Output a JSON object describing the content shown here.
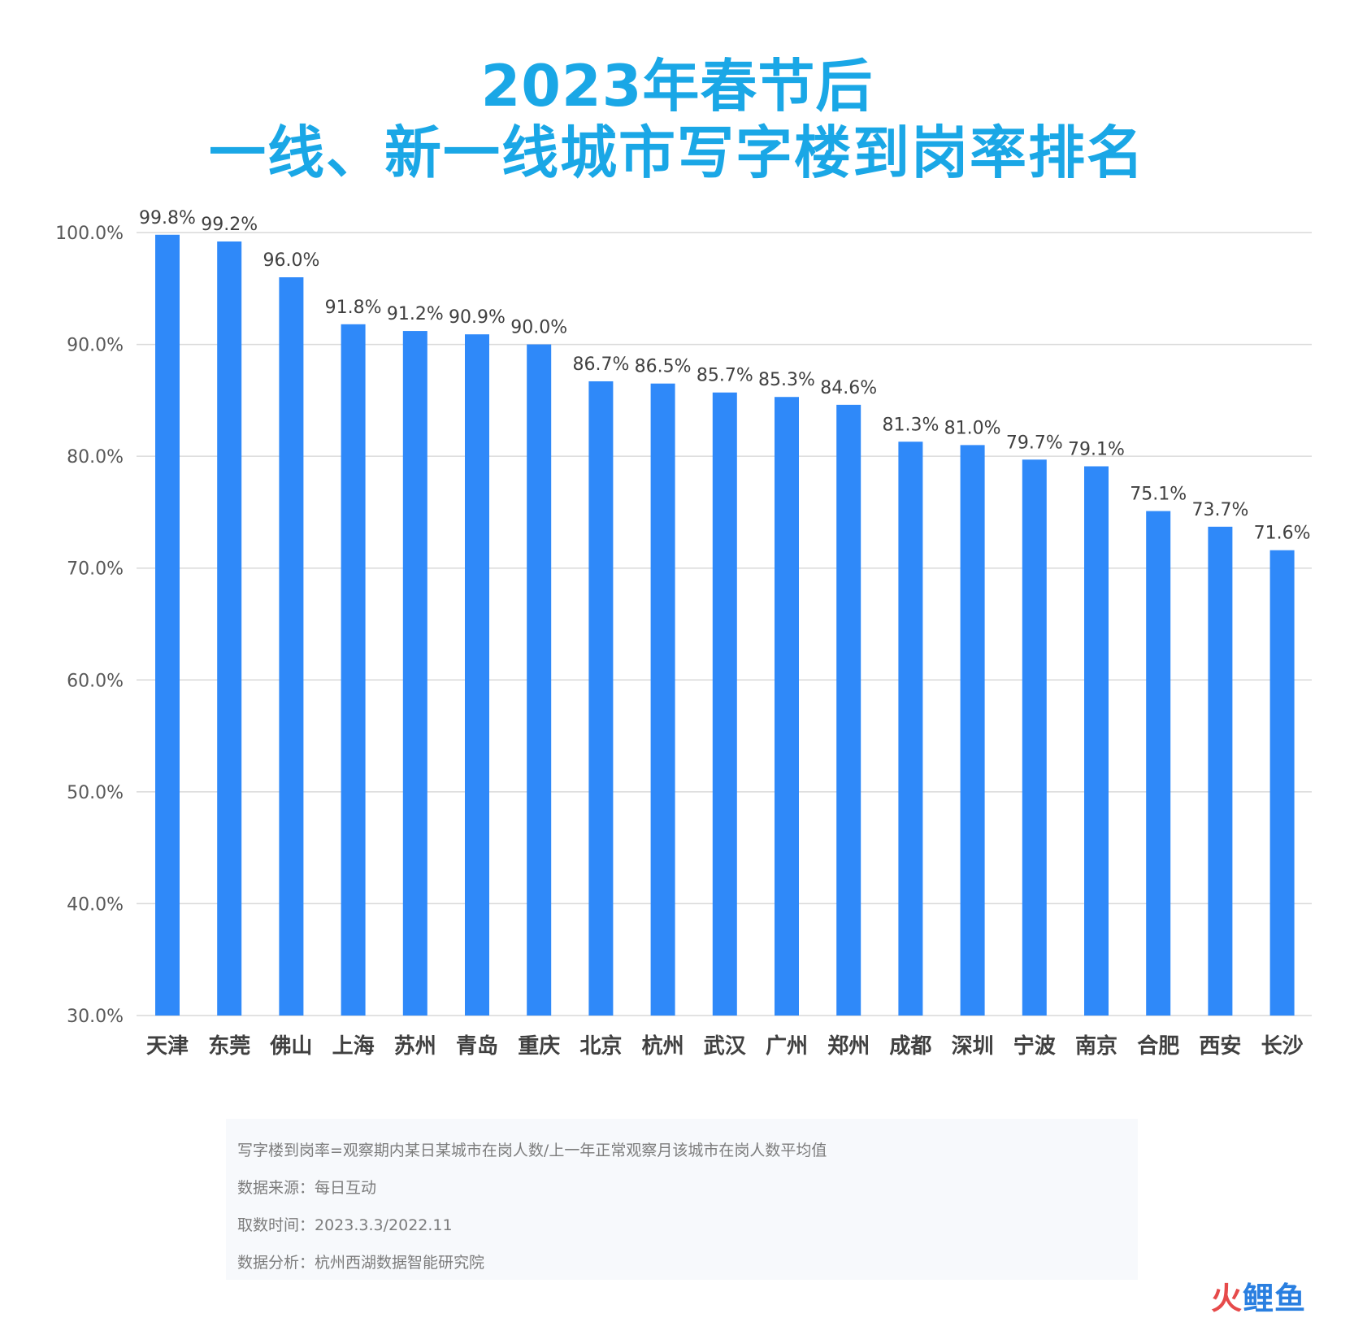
{
  "title": {
    "line1": "2023年春节后",
    "line2": "一线、新一线城市写字楼到岗率排名"
  },
  "colors": {
    "title": "#1aa7e6",
    "bar": "#2f89f9",
    "grid": "#d9d9d9",
    "axis_text": "#595959",
    "label_text": "#404040",
    "category_text": "#404040"
  },
  "chart_data": {
    "type": "bar",
    "title": "2023年春节后 一线、新一线城市写字楼到岗率排名",
    "xlabel": "",
    "ylabel": "",
    "categories": [
      "天津",
      "东莞",
      "佛山",
      "上海",
      "苏州",
      "青岛",
      "重庆",
      "北京",
      "杭州",
      "武汉",
      "广州",
      "郑州",
      "成都",
      "深圳",
      "宁波",
      "南京",
      "合肥",
      "西安",
      "长沙"
    ],
    "values": [
      99.8,
      99.2,
      96.0,
      91.8,
      91.2,
      90.9,
      90.0,
      86.7,
      86.5,
      85.7,
      85.3,
      84.6,
      81.3,
      81.0,
      79.7,
      79.1,
      75.1,
      73.7,
      71.6
    ],
    "value_labels": [
      "99.8%",
      "99.2%",
      "96.0%",
      "91.8%",
      "91.2%",
      "90.9%",
      "90.0%",
      "86.7%",
      "86.5%",
      "85.7%",
      "85.3%",
      "84.6%",
      "81.3%",
      "81.0%",
      "79.7%",
      "79.1%",
      "75.1%",
      "73.7%",
      "71.6%"
    ],
    "ylim": [
      30,
      100
    ],
    "yticks": [
      30,
      40,
      50,
      60,
      70,
      80,
      90,
      100
    ],
    "ytick_labels": [
      "30.0%",
      "40.0%",
      "50.0%",
      "60.0%",
      "70.0%",
      "80.0%",
      "90.0%",
      "100.0%"
    ],
    "grid": true,
    "legend": "none"
  },
  "notes": [
    "写字楼到岗率=观察期内某日某城市在岗人数/上一年正常观察月该城市在岗人数平均值",
    "数据来源：每日互动",
    "取数时间：2023.3.3/2022.11",
    "数据分析：杭州西湖数据智能研究院"
  ],
  "logo": {
    "part1": "火",
    "part2": "鲤鱼"
  }
}
